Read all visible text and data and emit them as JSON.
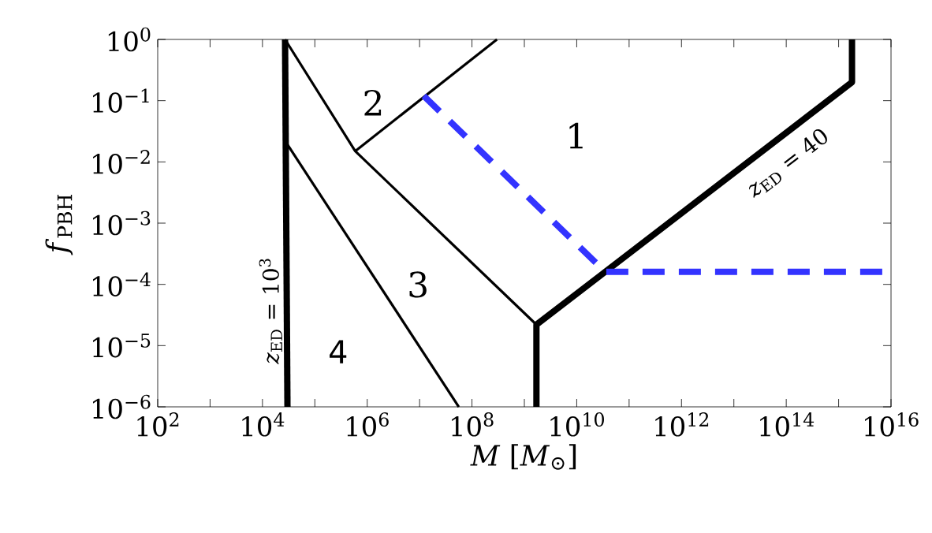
{
  "chart_data": {
    "type": "line",
    "xlabel": "*M* [*M*$_{⊙}$]",
    "ylabel": "*f*$_{PBH}$",
    "log": "xy",
    "grid": false,
    "marker": "none",
    "xlim": [
      100,
      1e+16
    ],
    "ylim": [
      1e-06,
      1
    ],
    "xticks": [
      {
        "value": 100,
        "label": "10$^{2}$"
      },
      {
        "value": 1000,
        "label": null
      },
      {
        "value": 10000.0,
        "label": "10$^{4}$"
      },
      {
        "value": 100000.0,
        "label": null
      },
      {
        "value": 1000000.0,
        "label": "10$^{6}$"
      },
      {
        "value": 10000000.0,
        "label": null
      },
      {
        "value": 100000000.0,
        "label": "10$^{8}$"
      },
      {
        "value": 1000000000.0,
        "label": null
      },
      {
        "value": 10000000000.0,
        "label": "10$^{10}$"
      },
      {
        "value": 100000000000.0,
        "label": null
      },
      {
        "value": 1000000000000.0,
        "label": "10$^{12}$"
      },
      {
        "value": 10000000000000.0,
        "label": null
      },
      {
        "value": 100000000000000.0,
        "label": "10$^{14}$"
      },
      {
        "value": 1000000000000000.0,
        "label": null
      },
      {
        "value": 1e+16,
        "label": "10$^{16}$"
      }
    ],
    "yticks": [
      {
        "value": 1e-06,
        "label": "10$^{−6}$"
      },
      {
        "value": 1e-05,
        "label": "10$^{−5}$"
      },
      {
        "value": 0.0001,
        "label": "10$^{−4}$"
      },
      {
        "value": 0.001,
        "label": "10$^{−3}$"
      },
      {
        "value": 0.01,
        "label": "10$^{−2}$"
      },
      {
        "value": 0.1,
        "label": "10$^{−1}$"
      },
      {
        "value": 1,
        "label": "10$^{0}$"
      }
    ],
    "series": [
      {
        "color": "#000000",
        "line_style": "solid",
        "x": [
          27000,
          30000
        ],
        "values": [
          1,
          1e-06
        ]
      },
      {
        "color": "#000000",
        "line_style": "solid",
        "x": [
          1700000000.0,
          1700000000.0,
          1800000000000000.0,
          1800000000000000.0
        ],
        "values": [
          1e-06,
          2.2e-05,
          0.2,
          1
        ]
      },
      {
        "color": "#000000",
        "line_style": "solid",
        "x": [
          27000,
          590000.0,
          1700000000.0
        ],
        "values": [
          1,
          0.015,
          2.2e-05
        ]
      },
      {
        "color": "#000000",
        "line_style": "solid",
        "x": [
          590000.0,
          300000000.0
        ],
        "values": [
          0.015,
          1
        ]
      },
      {
        "color": "#000000",
        "line_style": "solid",
        "x": [
          27000,
          56000000.0
        ],
        "values": [
          0.022,
          1e-06
        ]
      },
      {
        "color": "#3333ff",
        "line_style": "dashed",
        "x": [
          12000000.0,
          35000000000.0,
          1e+16
        ],
        "values": [
          0.12,
          0.00016,
          0.00016
        ]
      }
    ],
    "annotations": [
      "1",
      "2",
      "3",
      "4",
      "*z*$_{ED}$ = 10$^{3}$",
      "*z*$_{ED}$ = 40"
    ]
  }
}
